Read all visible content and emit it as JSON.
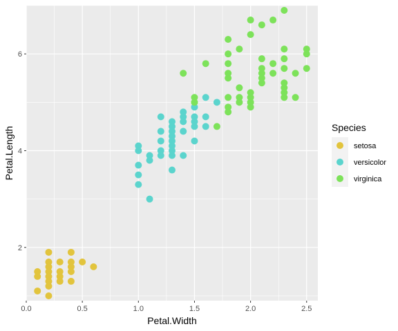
{
  "chart_data": {
    "type": "scatter",
    "xlabel": "Petal.Width",
    "ylabel": "Petal.Length",
    "xlim": [
      0,
      2.6
    ],
    "ylim": [
      0.9,
      7.0
    ],
    "x_ticks": [
      0.0,
      0.5,
      1.0,
      1.5,
      2.0,
      2.5
    ],
    "x_tick_labels": [
      "0.0",
      "0.5",
      "1.0",
      "1.5",
      "2.0",
      "2.5"
    ],
    "y_ticks": [
      2,
      4,
      6
    ],
    "y_tick_labels": [
      "2",
      "4",
      "6"
    ],
    "grid": true,
    "legend": {
      "title": "Species",
      "position": "right",
      "entries": [
        "setosa",
        "versicolor",
        "virginica"
      ]
    },
    "colors": {
      "setosa": "#E2C43D",
      "versicolor": "#5BD4CD",
      "virginica": "#7DE25A",
      "panel_background": "#EBEBEB",
      "grid": "#FFFFFF"
    },
    "series": [
      {
        "name": "setosa",
        "points": [
          [
            0.1,
            1.5
          ],
          [
            0.1,
            1.4
          ],
          [
            0.1,
            1.1
          ],
          [
            0.2,
            1.9
          ],
          [
            0.2,
            1.7
          ],
          [
            0.2,
            1.6
          ],
          [
            0.2,
            1.5
          ],
          [
            0.2,
            1.4
          ],
          [
            0.2,
            1.3
          ],
          [
            0.2,
            1.2
          ],
          [
            0.2,
            1.0
          ],
          [
            0.3,
            1.7
          ],
          [
            0.3,
            1.5
          ],
          [
            0.3,
            1.4
          ],
          [
            0.3,
            1.3
          ],
          [
            0.4,
            1.9
          ],
          [
            0.4,
            1.7
          ],
          [
            0.4,
            1.6
          ],
          [
            0.4,
            1.5
          ],
          [
            0.4,
            1.3
          ],
          [
            0.5,
            1.7
          ],
          [
            0.6,
            1.6
          ]
        ]
      },
      {
        "name": "versicolor",
        "points": [
          [
            1.0,
            4.1
          ],
          [
            1.0,
            4.0
          ],
          [
            1.0,
            3.7
          ],
          [
            1.0,
            3.5
          ],
          [
            1.0,
            3.3
          ],
          [
            1.1,
            3.9
          ],
          [
            1.1,
            3.8
          ],
          [
            1.1,
            3.0
          ],
          [
            1.2,
            4.7
          ],
          [
            1.2,
            4.4
          ],
          [
            1.2,
            4.2
          ],
          [
            1.2,
            4.0
          ],
          [
            1.2,
            3.9
          ],
          [
            1.3,
            4.6
          ],
          [
            1.3,
            4.5
          ],
          [
            1.3,
            4.4
          ],
          [
            1.3,
            4.3
          ],
          [
            1.3,
            4.2
          ],
          [
            1.3,
            4.1
          ],
          [
            1.3,
            4.0
          ],
          [
            1.3,
            3.9
          ],
          [
            1.3,
            3.6
          ],
          [
            1.4,
            4.8
          ],
          [
            1.4,
            4.7
          ],
          [
            1.4,
            4.6
          ],
          [
            1.4,
            4.4
          ],
          [
            1.4,
            3.9
          ],
          [
            1.5,
            4.9
          ],
          [
            1.5,
            4.7
          ],
          [
            1.5,
            4.6
          ],
          [
            1.5,
            4.5
          ],
          [
            1.5,
            4.2
          ],
          [
            1.6,
            5.1
          ],
          [
            1.6,
            4.7
          ],
          [
            1.6,
            4.5
          ],
          [
            1.7,
            5.0
          ]
        ]
      },
      {
        "name": "virginica",
        "points": [
          [
            1.4,
            5.6
          ],
          [
            1.5,
            5.1
          ],
          [
            1.5,
            5.0
          ],
          [
            1.6,
            5.8
          ],
          [
            1.7,
            4.5
          ],
          [
            1.8,
            6.3
          ],
          [
            1.8,
            6.0
          ],
          [
            1.8,
            5.8
          ],
          [
            1.8,
            5.6
          ],
          [
            1.8,
            5.5
          ],
          [
            1.8,
            5.1
          ],
          [
            1.8,
            4.9
          ],
          [
            1.8,
            4.8
          ],
          [
            1.9,
            6.1
          ],
          [
            1.9,
            5.3
          ],
          [
            1.9,
            5.1
          ],
          [
            1.9,
            5.0
          ],
          [
            2.0,
            6.7
          ],
          [
            2.0,
            6.4
          ],
          [
            2.0,
            5.2
          ],
          [
            2.0,
            5.1
          ],
          [
            2.0,
            5.0
          ],
          [
            2.0,
            4.9
          ],
          [
            2.1,
            6.6
          ],
          [
            2.1,
            5.9
          ],
          [
            2.1,
            5.7
          ],
          [
            2.1,
            5.6
          ],
          [
            2.1,
            5.5
          ],
          [
            2.1,
            5.4
          ],
          [
            2.2,
            6.7
          ],
          [
            2.2,
            5.8
          ],
          [
            2.2,
            5.6
          ],
          [
            2.3,
            6.9
          ],
          [
            2.3,
            6.1
          ],
          [
            2.3,
            5.9
          ],
          [
            2.3,
            5.7
          ],
          [
            2.3,
            5.4
          ],
          [
            2.3,
            5.3
          ],
          [
            2.3,
            5.2
          ],
          [
            2.3,
            5.1
          ],
          [
            2.4,
            5.6
          ],
          [
            2.4,
            5.1
          ],
          [
            2.5,
            6.1
          ],
          [
            2.5,
            6.0
          ],
          [
            2.5,
            5.7
          ]
        ]
      }
    ]
  }
}
